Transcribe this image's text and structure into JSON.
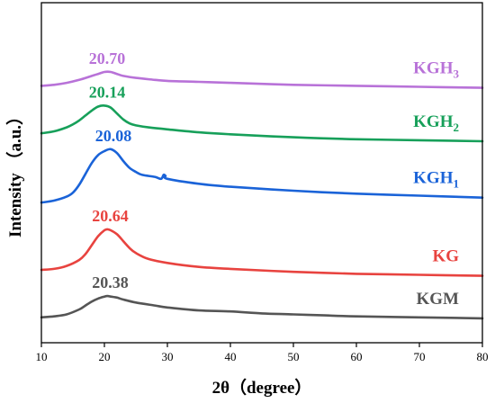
{
  "chart_data": {
    "type": "line",
    "xlabel": "2θ（degree）",
    "ylabel": "Intensity （a.u.）",
    "xlim": [
      10,
      80
    ],
    "xticks": [
      10,
      20,
      30,
      40,
      50,
      60,
      70,
      80
    ],
    "y_ticks_shown": false,
    "grid": false,
    "series": [
      {
        "name": "KGM",
        "name_main": "KGM",
        "name_sub": "",
        "color": "#555555",
        "peak_label": "20.38",
        "points": [
          [
            10,
            2
          ],
          [
            12,
            3
          ],
          [
            14,
            5
          ],
          [
            16,
            10
          ],
          [
            17,
            14
          ],
          [
            18,
            18
          ],
          [
            19,
            21
          ],
          [
            20,
            23
          ],
          [
            20.5,
            23.5
          ],
          [
            21,
            23
          ],
          [
            22,
            22
          ],
          [
            23,
            20
          ],
          [
            25,
            17
          ],
          [
            28,
            14
          ],
          [
            30,
            12
          ],
          [
            35,
            9
          ],
          [
            40,
            8
          ],
          [
            45,
            6
          ],
          [
            50,
            5
          ],
          [
            55,
            4
          ],
          [
            60,
            3
          ],
          [
            70,
            2
          ],
          [
            80,
            1
          ]
        ]
      },
      {
        "name": "KG",
        "name_main": "KG",
        "name_sub": "",
        "color": "#e8433f",
        "peak_label": "20.64",
        "points": [
          [
            10,
            50
          ],
          [
            12,
            51
          ],
          [
            14,
            54
          ],
          [
            16,
            60
          ],
          [
            17,
            66
          ],
          [
            18,
            75
          ],
          [
            19,
            84
          ],
          [
            20,
            90
          ],
          [
            20.5,
            91
          ],
          [
            21,
            90
          ],
          [
            22,
            86
          ],
          [
            23,
            79
          ],
          [
            24,
            72
          ],
          [
            25,
            67
          ],
          [
            27,
            61
          ],
          [
            30,
            57
          ],
          [
            35,
            53
          ],
          [
            40,
            51
          ],
          [
            50,
            48
          ],
          [
            60,
            46
          ],
          [
            70,
            45
          ],
          [
            80,
            44
          ]
        ]
      },
      {
        "name": "KGH1",
        "name_main": "KGH",
        "name_sub": "1",
        "color": "#1a63d8",
        "peak_label": "20.08",
        "points": [
          [
            10,
            118
          ],
          [
            12,
            120
          ],
          [
            14,
            124
          ],
          [
            15,
            128
          ],
          [
            16,
            136
          ],
          [
            17,
            147
          ],
          [
            18,
            158
          ],
          [
            19,
            166
          ],
          [
            20,
            170
          ],
          [
            21,
            172
          ],
          [
            22,
            168
          ],
          [
            23,
            160
          ],
          [
            24,
            153
          ],
          [
            25,
            149
          ],
          [
            26,
            146
          ],
          [
            28,
            144
          ],
          [
            29,
            142
          ],
          [
            29.4,
            146
          ],
          [
            29.7,
            145
          ],
          [
            30,
            142
          ],
          [
            35,
            137
          ],
          [
            40,
            134
          ],
          [
            50,
            130
          ],
          [
            60,
            127
          ],
          [
            70,
            125
          ],
          [
            80,
            123
          ]
        ]
      },
      {
        "name": "KGH2",
        "name_main": "KGH",
        "name_sub": "2",
        "color": "#17a05a",
        "peak_label": "20.14",
        "points": [
          [
            10,
            188
          ],
          [
            12,
            190
          ],
          [
            14,
            194
          ],
          [
            15,
            197
          ],
          [
            16,
            201
          ],
          [
            17,
            206
          ],
          [
            18,
            211
          ],
          [
            19,
            215
          ],
          [
            20,
            216
          ],
          [
            21,
            214
          ],
          [
            22,
            208
          ],
          [
            23,
            202
          ],
          [
            24,
            198
          ],
          [
            25,
            196
          ],
          [
            27,
            194
          ],
          [
            30,
            192
          ],
          [
            35,
            189
          ],
          [
            40,
            187
          ],
          [
            50,
            184
          ],
          [
            60,
            182
          ],
          [
            70,
            181
          ],
          [
            80,
            180
          ]
        ]
      },
      {
        "name": "KGH3",
        "name_main": "KGH",
        "name_sub": "3",
        "color": "#b872d8",
        "peak_label": "20.70",
        "points": [
          [
            10,
            236
          ],
          [
            12,
            237
          ],
          [
            14,
            239
          ],
          [
            16,
            242
          ],
          [
            18,
            246
          ],
          [
            19,
            248
          ],
          [
            20,
            250
          ],
          [
            21,
            250
          ],
          [
            22,
            248
          ],
          [
            23,
            246
          ],
          [
            25,
            244
          ],
          [
            28,
            242
          ],
          [
            30,
            241
          ],
          [
            35,
            240
          ],
          [
            40,
            239
          ],
          [
            50,
            237
          ],
          [
            60,
            236
          ],
          [
            70,
            235
          ],
          [
            80,
            234
          ]
        ]
      }
    ]
  }
}
